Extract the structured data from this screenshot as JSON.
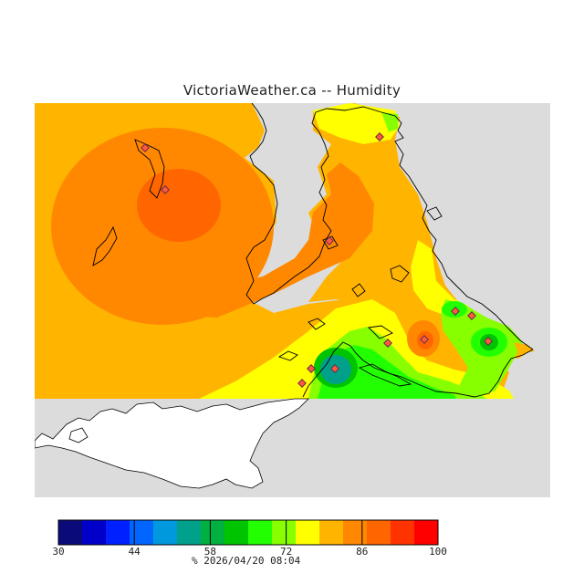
{
  "title": "VictoriaWeather.ca -- Humidity",
  "legend": {
    "ticks": [
      "30",
      "44",
      "58",
      "72",
      "86",
      "100"
    ],
    "colors": [
      "#0a0a7a",
      "#0000c8",
      "#0020ff",
      "#0066ff",
      "#0099dd",
      "#00a08a",
      "#00b040",
      "#00c400",
      "#22ff00",
      "#88ff00",
      "#ffff00",
      "#ffb400",
      "#ff8800",
      "#ff6600",
      "#ff3300",
      "#ff0000"
    ],
    "unit": "%",
    "timestamp": "2026/04/20 08:04"
  },
  "map": {
    "no_data_color": "#dcdcdc",
    "station_count": 12
  }
}
